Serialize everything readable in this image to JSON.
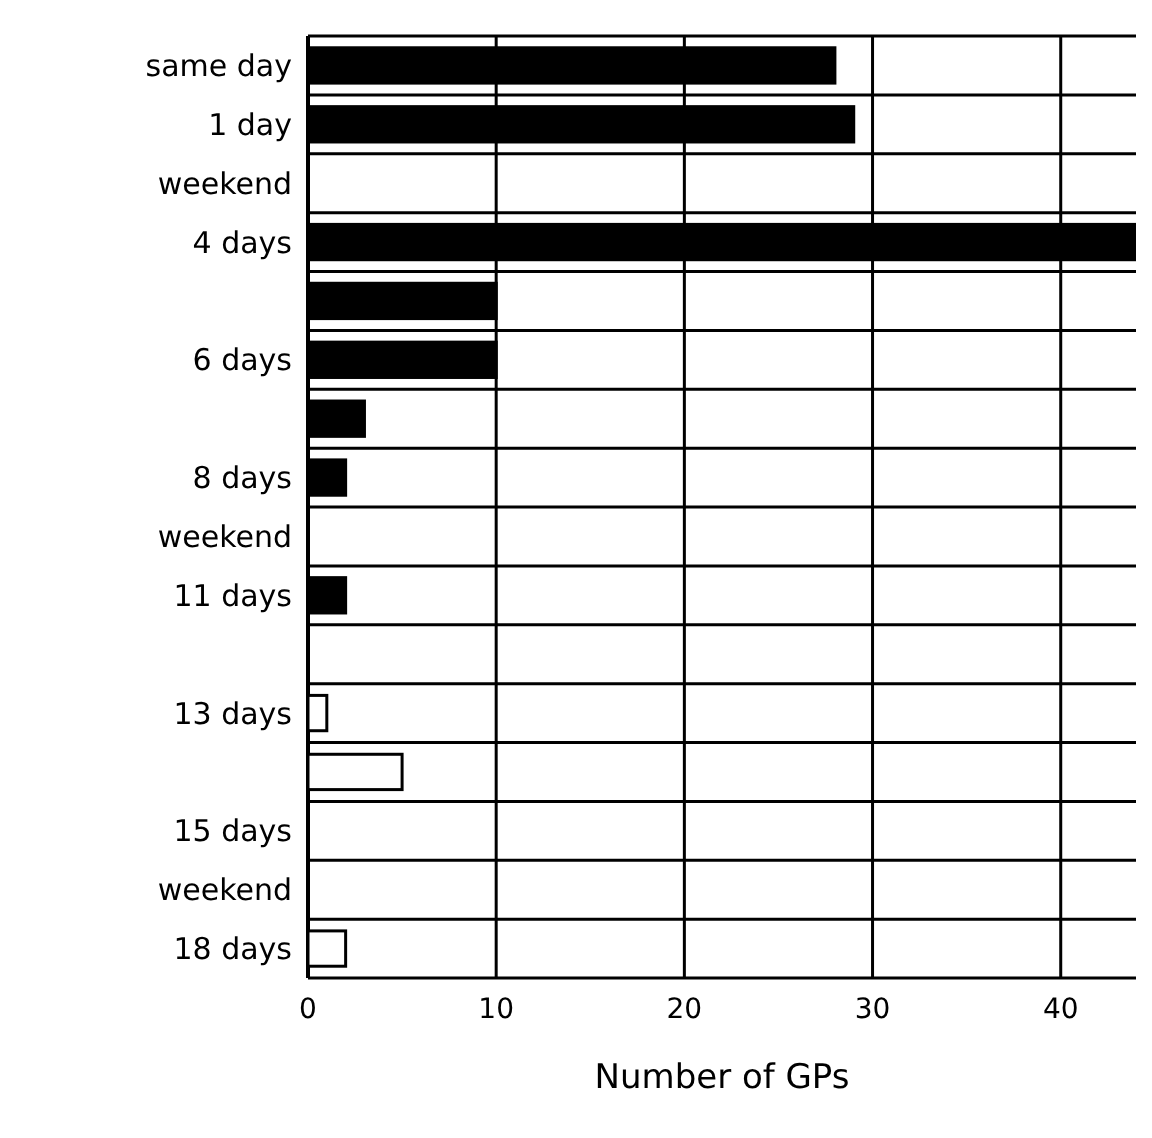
{
  "chart_data": {
    "type": "bar",
    "orientation": "horizontal",
    "xlabel": "Number of GPs",
    "categories": [
      "same day",
      "1 day",
      "weekend",
      "4 days",
      null,
      "6 days",
      null,
      "8 days",
      "weekend",
      "11 days",
      null,
      "13 days",
      null,
      "15 days",
      "weekend",
      "18 days"
    ],
    "values": [
      28,
      29,
      null,
      44,
      10,
      10,
      3,
      2,
      null,
      2,
      0,
      1,
      5,
      0,
      null,
      2
    ],
    "colors": [
      "#000000",
      "#000000",
      null,
      "#000000",
      "#000000",
      "#000000",
      "#000000",
      "#000000",
      null,
      "#000000",
      "#ffffff",
      "#ffffff",
      "#ffffff",
      "#ffffff",
      null,
      "#ffffff"
    ],
    "xlim": [
      0,
      44
    ],
    "xticks": [
      0,
      10,
      20,
      30,
      40
    ],
    "grid": true
  }
}
